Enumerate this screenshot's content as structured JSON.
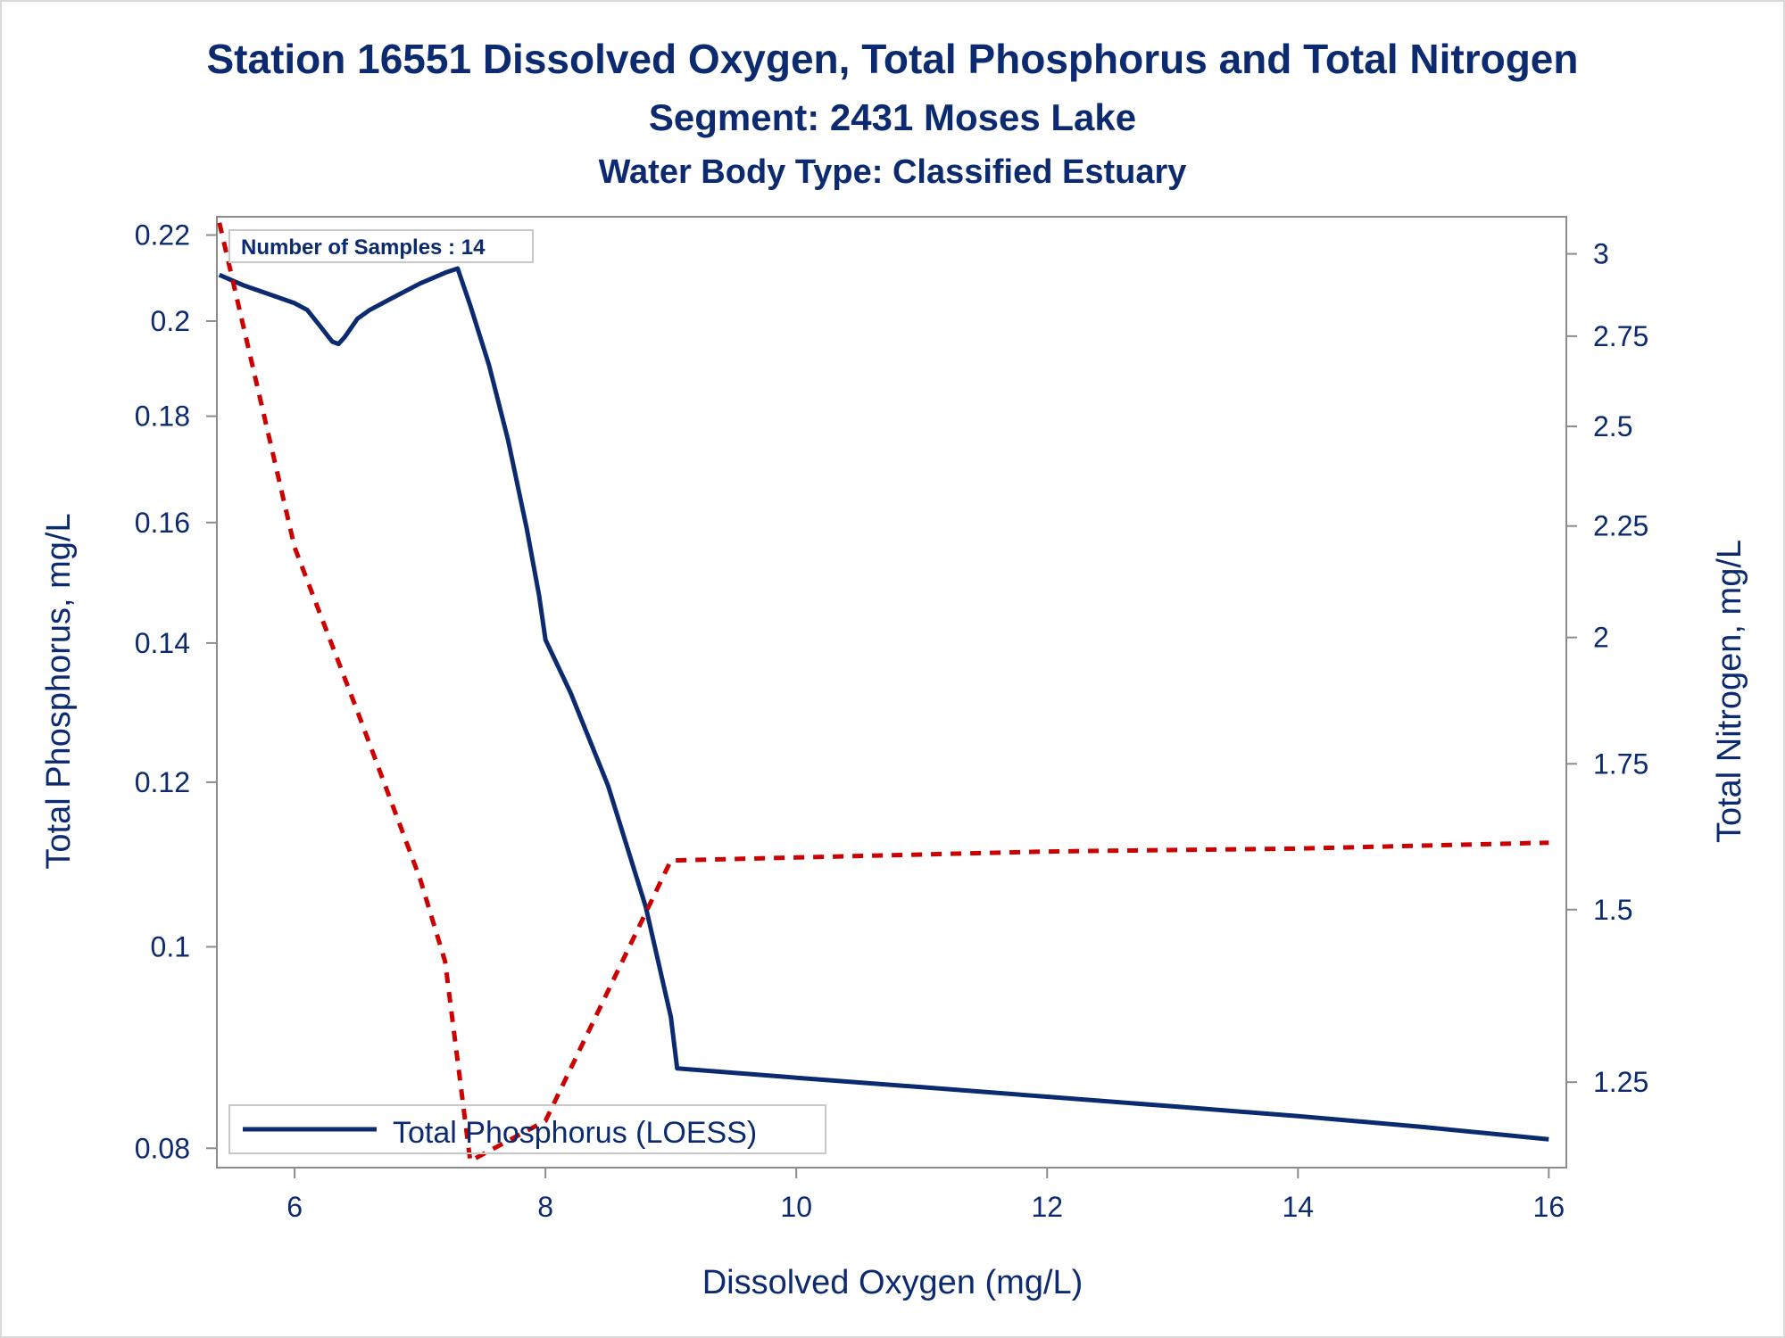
{
  "chart_data": {
    "type": "line",
    "title": "Station 16551  Dissolved Oxygen, Total Phosphorus and Total Nitrogen",
    "subtitle": "Segment: 2431  Moses Lake",
    "subtitle2": "Water Body Type: Classified Estuary",
    "xlabel": "Dissolved Oxygen (mg/L)",
    "ylabel_left": "Total Phosphorus, mg/L",
    "ylabel_right": "Total Nitrogen, mg/L",
    "inset_text": "Number of Samples : 14",
    "legend_entries": [
      "Total Phosphorus (LOESS)"
    ],
    "legend_placement": "bottom-left",
    "grid": false,
    "xlim": [
      5.38,
      16.14
    ],
    "xticks": [
      "6",
      "8",
      "10",
      "12",
      "14",
      "16"
    ],
    "xtick_values": [
      6,
      8,
      10,
      12,
      14,
      16
    ],
    "y_left_scale": "log",
    "y_left_lim": [
      0.0783,
      0.2245
    ],
    "y_left_ticks": [
      "0.08",
      "0.1",
      "0.12",
      "0.14",
      "0.16",
      "0.18",
      "0.2",
      "0.22"
    ],
    "y_left_tick_values": [
      0.08,
      0.1,
      0.12,
      0.14,
      0.16,
      0.18,
      0.2,
      0.22
    ],
    "y_right_scale": "log",
    "y_right_lim": [
      1.142,
      3.12
    ],
    "y_right_ticks": [
      "1.25",
      "1.5",
      "1.75",
      "2",
      "2.25",
      "2.5",
      "2.75",
      "3"
    ],
    "y_right_tick_values": [
      1.25,
      1.5,
      1.75,
      2,
      2.25,
      2.5,
      2.75,
      3
    ],
    "series": [
      {
        "name": "Total Phosphorus (LOESS)",
        "axis": "left",
        "style": "solid",
        "color": "#0b2a6f",
        "x": [
          5.4,
          5.6,
          5.8,
          6.0,
          6.1,
          6.2,
          6.3,
          6.35,
          6.4,
          6.5,
          6.6,
          6.8,
          7.0,
          7.2,
          7.3,
          7.4,
          7.55,
          7.7,
          7.85,
          7.95,
          8.0,
          8.2,
          8.5,
          8.8,
          9.0,
          9.05,
          10.0,
          11.0,
          12.0,
          13.0,
          14.0,
          15.0,
          16.0
        ],
        "y": [
          0.2105,
          0.208,
          0.206,
          0.204,
          0.2025,
          0.199,
          0.1955,
          0.195,
          0.1965,
          0.2005,
          0.2025,
          0.2055,
          0.2085,
          0.211,
          0.212,
          0.2035,
          0.1905,
          0.1755,
          0.159,
          0.1475,
          0.1405,
          0.1325,
          0.1195,
          0.1045,
          0.0925,
          0.0874,
          0.0865,
          0.0856,
          0.0847,
          0.0838,
          0.0829,
          0.0819,
          0.0808
        ]
      },
      {
        "axis": "right",
        "style": "dashed",
        "color": "#cc0000",
        "x": [
          5.4,
          6.0,
          6.5,
          7.0,
          7.2,
          7.4,
          8.0,
          9.0,
          10.0,
          12.0,
          14.0,
          16.0
        ],
        "y": [
          3.1,
          2.2,
          1.85,
          1.55,
          1.42,
          1.15,
          1.2,
          1.58,
          1.585,
          1.595,
          1.6,
          1.61
        ]
      }
    ]
  }
}
